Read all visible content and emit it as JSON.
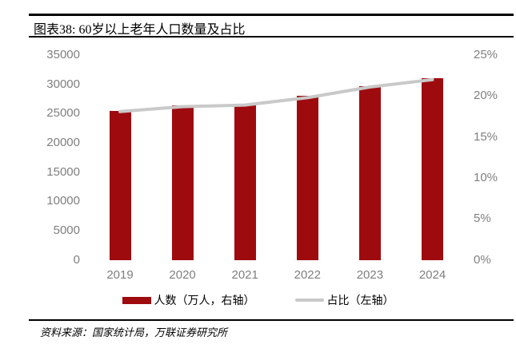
{
  "header": {
    "title": "图表38: 60岁以上老年人口数量及占比"
  },
  "chart_data": {
    "type": "bar",
    "title": "图表38: 60岁以上老年人口数量及占比",
    "categories": [
      "2019",
      "2020",
      "2021",
      "2022",
      "2023",
      "2024"
    ],
    "series": [
      {
        "name": "人数（万人，右轴）",
        "type": "bar",
        "axis": "numeric",
        "values": [
          25388,
          26402,
          26736,
          28004,
          29697,
          31031
        ],
        "color": "#9E0B0F"
      },
      {
        "name": "占比（左轴）",
        "type": "line",
        "axis": "percent",
        "values": [
          18.1,
          18.7,
          18.9,
          19.8,
          21.1,
          22.0
        ],
        "color": "#C9C9C9"
      }
    ],
    "numeric_axis": {
      "side_shown": "left",
      "min": 0,
      "max": 35000,
      "step": 5000,
      "tick_labels": [
        "35000",
        "30000",
        "25000",
        "20000",
        "15000",
        "10000",
        "5000",
        "0"
      ]
    },
    "percent_axis": {
      "side_shown": "right",
      "min": 0,
      "max": 25,
      "step": 5,
      "tick_labels": [
        "25%",
        "20%",
        "15%",
        "10%",
        "5%",
        "0%"
      ]
    },
    "legend_position": "bottom",
    "grid": false,
    "axis_text_color": "#7f7f7f"
  },
  "footer": {
    "source": "资料来源：国家统计局，万联证券研究所"
  }
}
